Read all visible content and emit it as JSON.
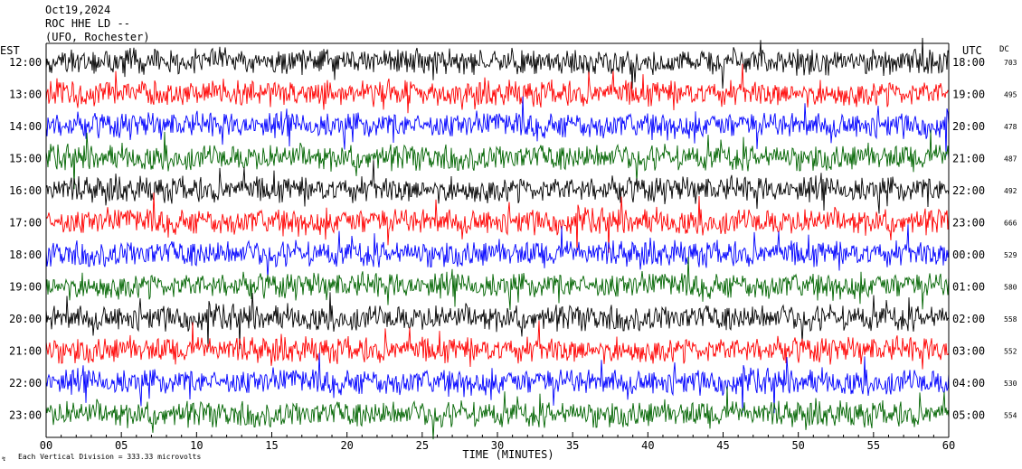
{
  "header": {
    "date": "Oct19,2024",
    "station": "ROC HHE LD --",
    "network": "(UFO, Rochester)"
  },
  "left_timezone": "EST",
  "right_timezone": "UTC",
  "dc_label": "DC",
  "xlabel": "TIME (MINUTES)",
  "footer_note": "Each Vertical Division =  333.33 microvolts",
  "chart_data": {
    "type": "line",
    "title": "",
    "xlabel": "TIME (MINUTES)",
    "ylabel": "",
    "xlim": [
      0,
      60
    ],
    "x_ticks": [
      "00",
      "05",
      "10",
      "15",
      "20",
      "25",
      "30",
      "35",
      "40",
      "45",
      "50",
      "55",
      "60"
    ],
    "trace_colors": [
      "#000000",
      "#ff0000",
      "#0000ff",
      "#006400"
    ],
    "rows": [
      {
        "est": "12:00",
        "utc": "18:00",
        "dc": "703"
      },
      {
        "est": "13:00",
        "utc": "19:00",
        "dc": "495"
      },
      {
        "est": "14:00",
        "utc": "20:00",
        "dc": "478"
      },
      {
        "est": "15:00",
        "utc": "21:00",
        "dc": "487"
      },
      {
        "est": "16:00",
        "utc": "22:00",
        "dc": "492"
      },
      {
        "est": "17:00",
        "utc": "23:00",
        "dc": "666"
      },
      {
        "est": "18:00",
        "utc": "00:00",
        "dc": "529"
      },
      {
        "est": "19:00",
        "utc": "01:00",
        "dc": "580"
      },
      {
        "est": "20:00",
        "utc": "02:00",
        "dc": "558"
      },
      {
        "est": "21:00",
        "utc": "03:00",
        "dc": "552"
      },
      {
        "est": "22:00",
        "utc": "04:00",
        "dc": "530"
      },
      {
        "est": "23:00",
        "utc": "05:00",
        "dc": "554"
      }
    ]
  }
}
